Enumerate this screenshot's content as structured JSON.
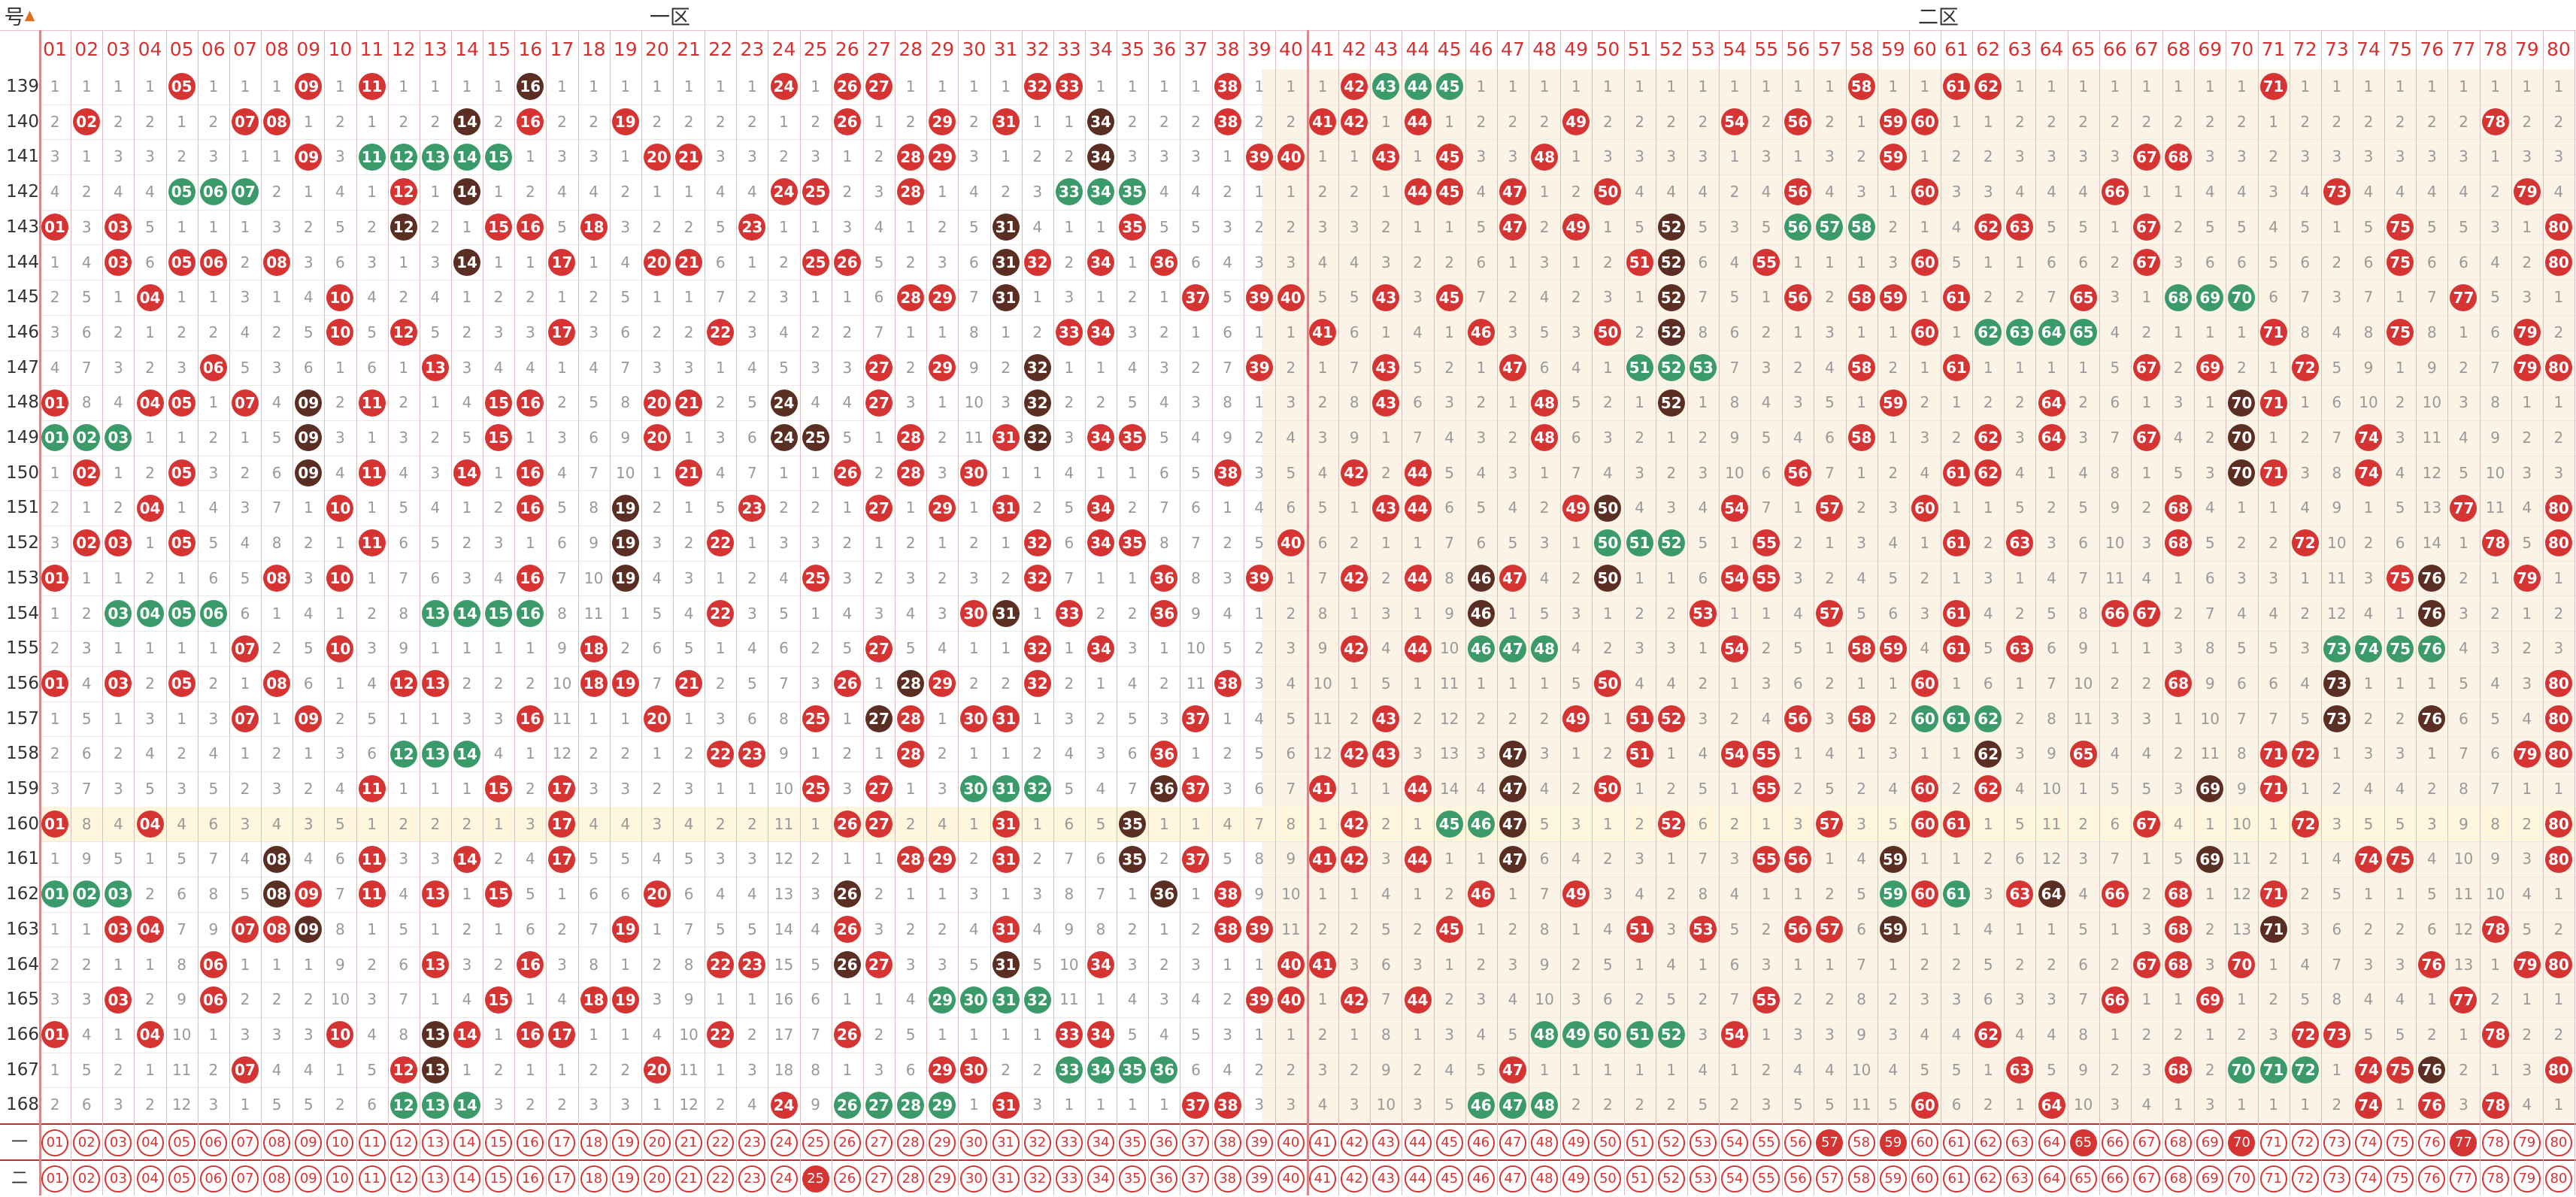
{
  "header": {
    "corner_label": "号",
    "zone1": "一区",
    "zone2": "二区"
  },
  "footer_labels": [
    "一",
    "二"
  ],
  "numbers": [
    "01",
    "02",
    "03",
    "04",
    "05",
    "06",
    "07",
    "08",
    "09",
    "10",
    "11",
    "12",
    "13",
    "14",
    "15",
    "16",
    "17",
    "18",
    "19",
    "20",
    "21",
    "22",
    "23",
    "24",
    "25",
    "26",
    "27",
    "28",
    "29",
    "30",
    "31",
    "32",
    "33",
    "34",
    "35",
    "36",
    "37",
    "38",
    "39",
    "40",
    "41",
    "42",
    "43",
    "44",
    "45",
    "46",
    "47",
    "48",
    "49",
    "50",
    "51",
    "52",
    "53",
    "54",
    "55",
    "56",
    "57",
    "58",
    "59",
    "60",
    "61",
    "62",
    "63",
    "64",
    "65",
    "66",
    "67",
    "68",
    "69",
    "70",
    "71",
    "72",
    "73",
    "74",
    "75",
    "76",
    "77",
    "78",
    "79",
    "80"
  ],
  "periods": [
    "139",
    "140",
    "141",
    "142",
    "143",
    "144",
    "145",
    "146",
    "147",
    "148",
    "149",
    "150",
    "151",
    "152",
    "153",
    "154",
    "155",
    "156",
    "157",
    "158",
    "159",
    "160",
    "161",
    "162",
    "163",
    "164",
    "165",
    "166",
    "167",
    "168"
  ],
  "highlight_period": "160",
  "draws": [
    {
      "red": [
        5,
        9,
        11,
        16,
        24,
        26,
        27,
        32,
        33,
        38,
        42,
        58,
        61,
        62,
        71
      ],
      "green": [
        43,
        44,
        45
      ],
      "brown": [
        16
      ]
    },
    {
      "red": [
        2,
        7,
        8,
        16,
        19,
        26,
        29,
        31,
        38,
        41,
        42,
        44,
        49,
        54,
        56,
        59,
        60,
        78
      ],
      "brown": [
        14,
        34
      ]
    },
    {
      "red": [
        9,
        20,
        21,
        28,
        29,
        39,
        40,
        43,
        45,
        48,
        59,
        67,
        68
      ],
      "green": [
        11,
        12,
        13,
        14,
        15
      ],
      "brown": [
        34
      ]
    },
    {
      "red": [
        12,
        24,
        25,
        28,
        44,
        45,
        47,
        50,
        56,
        60,
        66,
        73,
        79
      ],
      "green": [
        5,
        6,
        7,
        33,
        34,
        35
      ],
      "brown": [
        14
      ]
    },
    {
      "red": [
        1,
        3,
        15,
        16,
        18,
        23,
        35,
        47,
        49,
        62,
        63,
        67,
        75,
        80
      ],
      "green": [
        56,
        57,
        58
      ],
      "brown": [
        12,
        31,
        52
      ]
    },
    {
      "red": [
        3,
        5,
        6,
        8,
        17,
        20,
        21,
        25,
        26,
        32,
        34,
        36,
        51,
        55,
        60,
        67,
        75,
        80
      ],
      "brown": [
        14,
        31,
        52
      ]
    },
    {
      "red": [
        4,
        10,
        28,
        29,
        37,
        39,
        40,
        43,
        45,
        56,
        58,
        59,
        61,
        65,
        77
      ],
      "green": [
        68,
        69,
        70
      ],
      "brown": [
        31,
        52
      ]
    },
    {
      "red": [
        10,
        12,
        17,
        22,
        33,
        34,
        41,
        46,
        50,
        60,
        71,
        75,
        79
      ],
      "green": [
        62,
        63,
        64,
        65
      ],
      "brown": [
        52
      ]
    },
    {
      "red": [
        6,
        13,
        27,
        29,
        39,
        43,
        47,
        58,
        61,
        67,
        69,
        72,
        79,
        80
      ],
      "green": [
        51,
        52,
        53
      ],
      "brown": [
        32
      ]
    },
    {
      "red": [
        1,
        4,
        5,
        7,
        11,
        15,
        16,
        20,
        21,
        27,
        43,
        48,
        59,
        64,
        71
      ],
      "brown": [
        9,
        24,
        32,
        52,
        70
      ]
    },
    {
      "red": [
        15,
        20,
        28,
        31,
        34,
        35,
        48,
        58,
        62,
        64,
        67,
        74
      ],
      "green": [
        1,
        2,
        3
      ],
      "brown": [
        9,
        24,
        25,
        32,
        70
      ]
    },
    {
      "red": [
        2,
        5,
        9,
        11,
        14,
        16,
        21,
        26,
        28,
        30,
        38,
        42,
        44,
        56,
        61,
        62,
        71,
        74
      ],
      "brown": [
        9,
        70
      ]
    },
    {
      "red": [
        4,
        10,
        16,
        23,
        27,
        29,
        31,
        34,
        43,
        44,
        49,
        54,
        57,
        60,
        68,
        77,
        80
      ],
      "brown": [
        19,
        50
      ]
    },
    {
      "red": [
        2,
        3,
        5,
        11,
        22,
        32,
        34,
        35,
        40,
        55,
        61,
        63,
        68,
        72,
        78,
        80
      ],
      "brown": [
        19
      ],
      "green": [
        50,
        51,
        52
      ]
    },
    {
      "red": [
        1,
        8,
        10,
        16,
        25,
        32,
        36,
        39,
        42,
        44,
        47,
        54,
        55,
        75,
        79
      ],
      "brown": [
        19,
        46,
        50,
        76
      ]
    },
    {
      "red": [
        22,
        30,
        33,
        36,
        53,
        57,
        61,
        66,
        67
      ],
      "green": [
        3,
        4,
        5,
        6,
        13,
        14,
        15,
        16
      ],
      "brown": [
        31,
        46,
        76
      ]
    },
    {
      "red": [
        7,
        10,
        18,
        27,
        32,
        34,
        42,
        44,
        54,
        58,
        59,
        61,
        63
      ],
      "green": [
        46,
        47,
        48,
        73,
        74,
        75,
        76
      ]
    },
    {
      "red": [
        1,
        3,
        5,
        8,
        12,
        13,
        18,
        19,
        21,
        26,
        29,
        32,
        38,
        50,
        60,
        68,
        80
      ],
      "brown": [
        28,
        73
      ]
    },
    {
      "red": [
        7,
        9,
        16,
        20,
        25,
        28,
        30,
        31,
        37,
        43,
        49,
        51,
        52,
        56,
        58,
        80
      ],
      "brown": [
        27,
        73,
        76
      ],
      "green": [
        60,
        61,
        62
      ]
    },
    {
      "red": [
        22,
        23,
        28,
        36,
        42,
        43,
        51,
        54,
        55,
        65,
        71,
        72,
        79,
        80
      ],
      "green": [
        12,
        13,
        14
      ],
      "brown": [
        47,
        62
      ]
    },
    {
      "red": [
        11,
        15,
        17,
        25,
        27,
        37,
        41,
        44,
        50,
        55,
        60,
        62,
        71
      ],
      "green": [
        30,
        31,
        32
      ],
      "brown": [
        36,
        47,
        69
      ]
    },
    {
      "red": [
        1,
        4,
        17,
        26,
        27,
        31,
        42,
        52,
        57,
        60,
        61,
        67,
        72,
        80
      ],
      "green": [
        45,
        46
      ],
      "brown": [
        35,
        47
      ]
    },
    {
      "red": [
        11,
        14,
        17,
        28,
        29,
        31,
        37,
        41,
        42,
        44,
        55,
        56,
        74,
        75,
        80
      ],
      "brown": [
        8,
        35,
        47,
        59,
        69
      ]
    },
    {
      "red": [
        9,
        11,
        13,
        15,
        20,
        38,
        46,
        49,
        60,
        63,
        66,
        68,
        71
      ],
      "green": [
        1,
        2,
        3,
        59,
        61
      ],
      "brown": [
        8,
        26,
        36,
        64
      ]
    },
    {
      "red": [
        3,
        4,
        7,
        8,
        19,
        26,
        31,
        38,
        39,
        45,
        51,
        53,
        56,
        57,
        68,
        71,
        78
      ],
      "brown": [
        9,
        59,
        71
      ]
    },
    {
      "red": [
        6,
        13,
        16,
        22,
        23,
        27,
        34,
        40,
        41,
        67,
        68,
        70,
        76,
        79,
        80
      ],
      "brown": [
        26,
        31
      ]
    },
    {
      "red": [
        3,
        6,
        15,
        18,
        19,
        39,
        40,
        42,
        44,
        55,
        66,
        69,
        77
      ],
      "green": [
        29,
        30,
        31,
        32
      ]
    },
    {
      "red": [
        1,
        4,
        10,
        14,
        16,
        17,
        22,
        26,
        33,
        34,
        54,
        62,
        72,
        73,
        78
      ],
      "brown": [
        13
      ],
      "green": [
        48,
        49,
        50,
        51,
        52
      ]
    },
    {
      "red": [
        7,
        12,
        20,
        29,
        30,
        36,
        47,
        63,
        68,
        74,
        75,
        80
      ],
      "green": [
        33,
        34,
        35,
        36,
        70,
        71,
        72
      ],
      "brown": [
        13,
        76
      ]
    },
    {
      "red": [
        24,
        31,
        37,
        38,
        60,
        64,
        74,
        76,
        78
      ],
      "green": [
        12,
        13,
        14,
        26,
        27,
        28,
        29,
        46,
        47,
        48
      ]
    }
  ],
  "footer_red_row1": [
    57,
    59,
    65,
    70,
    77
  ],
  "footer_red_row2": [
    25
  ]
}
